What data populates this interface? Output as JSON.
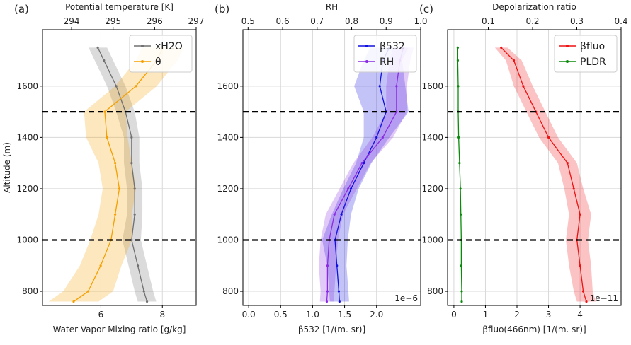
{
  "chart_data": [
    {
      "type": "line",
      "panel_label": "(a)",
      "xlabel": "Water Vapor Mixing ratio [g/kg]",
      "x2label": "Potential temperature [K]",
      "ylabel": "Altitude (m)",
      "y": [
        760,
        800,
        900,
        1000,
        1100,
        1200,
        1300,
        1400,
        1500,
        1600,
        1700,
        1750
      ],
      "xlim": [
        4.1,
        9.1
      ],
      "xticks": [
        6,
        8
      ],
      "x2lim": [
        293.3,
        297.0
      ],
      "x2ticks": [
        294,
        295,
        296,
        297
      ],
      "ylim": [
        745,
        1820
      ],
      "yticks": [
        800,
        1000,
        1200,
        1400,
        1600
      ],
      "hlines": [
        1000,
        1500
      ],
      "grid": true,
      "legend": "upper right",
      "series": [
        {
          "name": "xH2O",
          "color": "#707070",
          "axis": "x",
          "values": [
            7.5,
            7.4,
            7.2,
            7.0,
            7.1,
            7.1,
            7.0,
            7.0,
            6.8,
            6.5,
            6.1,
            5.9
          ],
          "errors": [
            0.3,
            0.3,
            0.3,
            0.3,
            0.25,
            0.25,
            0.25,
            0.25,
            0.3,
            0.3,
            0.3,
            0.3
          ]
        },
        {
          "name": "θ",
          "color": "#f5a000",
          "axis": "x2",
          "values": [
            294.05,
            294.4,
            294.7,
            294.95,
            295.05,
            295.15,
            295.05,
            294.85,
            294.8,
            295.55,
            296.05,
            296.2
          ],
          "errors": [
            0.6,
            0.6,
            0.5,
            0.5,
            0.4,
            0.4,
            0.4,
            0.5,
            0.5,
            0.5,
            0.5,
            0.5
          ]
        }
      ]
    },
    {
      "type": "line",
      "panel_label": "(b)",
      "xlabel": "β532 [1/(m. sr)]",
      "x2label": "RH",
      "offset_text": "1e−6",
      "y": [
        760,
        800,
        900,
        1000,
        1100,
        1200,
        1300,
        1400,
        1500,
        1600,
        1700,
        1750
      ],
      "xlim": [
        -0.09,
        2.69
      ],
      "xticks": [
        {
          "value": 0,
          "label": "0.0"
        },
        0.5,
        {
          "value": 1,
          "label": "1.0"
        },
        1.5,
        {
          "value": 2,
          "label": "2.0"
        }
      ],
      "x2lim": [
        0.485,
        1.0
      ],
      "x2ticks": [
        0.5,
        0.6,
        0.7,
        0.8,
        0.9,
        {
          "value": 1,
          "label": "1.0"
        }
      ],
      "ylim": [
        745,
        1820
      ],
      "yticks": [
        800,
        1000,
        1200,
        1400,
        1600
      ],
      "hlines": [
        1000,
        1500
      ],
      "grid": true,
      "legend": "upper right",
      "series": [
        {
          "name": "β532",
          "color": "#1010e0",
          "axis": "x",
          "values": [
            1.42,
            1.41,
            1.38,
            1.35,
            1.45,
            1.6,
            1.8,
            2.0,
            2.15,
            2.05,
            2.1,
            2.2
          ],
          "errors": [
            0.15,
            0.15,
            0.15,
            0.2,
            0.15,
            0.12,
            0.12,
            0.2,
            0.35,
            0.4,
            0.3,
            0.3
          ]
        },
        {
          "name": "RH",
          "color": "#8a2be2",
          "axis": "x2",
          "values": [
            0.728,
            0.73,
            0.73,
            0.735,
            0.75,
            0.79,
            0.83,
            0.89,
            0.93,
            0.93,
            0.94,
            0.95
          ],
          "errors": [
            0.02,
            0.02,
            0.025,
            0.025,
            0.025,
            0.025,
            0.025,
            0.03,
            0.03,
            0.03,
            0.03,
            0.03
          ]
        }
      ]
    },
    {
      "type": "line",
      "panel_label": "(c)",
      "xlabel": "βfluo(466nm) [1/(m. sr)]",
      "x2label": "Depolarization ratio",
      "offset_text": "1e−11",
      "y": [
        760,
        800,
        900,
        1000,
        1100,
        1200,
        1300,
        1400,
        1500,
        1600,
        1700,
        1750
      ],
      "xlim": [
        -0.2,
        5.3
      ],
      "xticks": [
        0,
        1,
        2,
        3,
        4
      ],
      "x2lim": [
        0.008,
        0.4
      ],
      "x2ticks": [
        0.1,
        0.2,
        0.3,
        0.4
      ],
      "ylim": [
        745,
        1820
      ],
      "yticks": [
        800,
        1000,
        1200,
        1400,
        1600
      ],
      "hlines": [
        1000,
        1500
      ],
      "grid": true,
      "legend": "upper right",
      "series": [
        {
          "name": "βfluo",
          "color": "#ee1111",
          "axis": "x",
          "values": [
            4.2,
            4.1,
            4.0,
            3.9,
            4.0,
            3.8,
            3.6,
            3.0,
            2.6,
            2.2,
            1.9,
            1.5
          ],
          "errors": [
            0.3,
            0.3,
            0.35,
            0.35,
            0.35,
            0.3,
            0.3,
            0.3,
            0.3,
            0.3,
            0.25,
            0.2
          ]
        },
        {
          "name": "PLDR",
          "color": "#0a8a0a",
          "axis": "x2",
          "values": [
            0.04,
            0.04,
            0.039,
            0.039,
            0.038,
            0.037,
            0.035,
            0.033,
            0.032,
            0.032,
            0.031,
            0.031
          ]
        }
      ]
    }
  ]
}
